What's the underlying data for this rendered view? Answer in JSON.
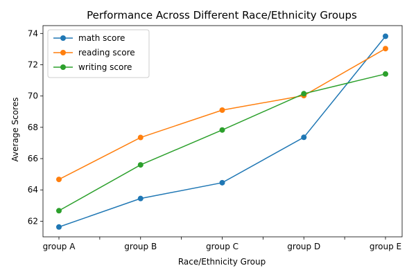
{
  "chart_data": {
    "type": "line",
    "title": "Performance Across Different Race/Ethnicity Groups",
    "xlabel": "Race/Ethnicity Group",
    "ylabel": "Average Scores",
    "categories": [
      "group A",
      "group B",
      "group C",
      "group D",
      "group E"
    ],
    "ylim": [
      61.0,
      74.5
    ],
    "yticks": [
      62,
      64,
      66,
      68,
      70,
      72,
      74
    ],
    "grid": false,
    "legend_position": "top-left",
    "series": [
      {
        "name": "math score",
        "color": "#1f77b4",
        "values": [
          61.63,
          63.45,
          64.46,
          67.36,
          73.82
        ]
      },
      {
        "name": "reading score",
        "color": "#ff7f0e",
        "values": [
          64.67,
          67.35,
          69.1,
          70.03,
          73.03
        ]
      },
      {
        "name": "writing score",
        "color": "#2ca02c",
        "values": [
          62.67,
          65.6,
          67.83,
          70.15,
          71.41
        ]
      }
    ]
  }
}
